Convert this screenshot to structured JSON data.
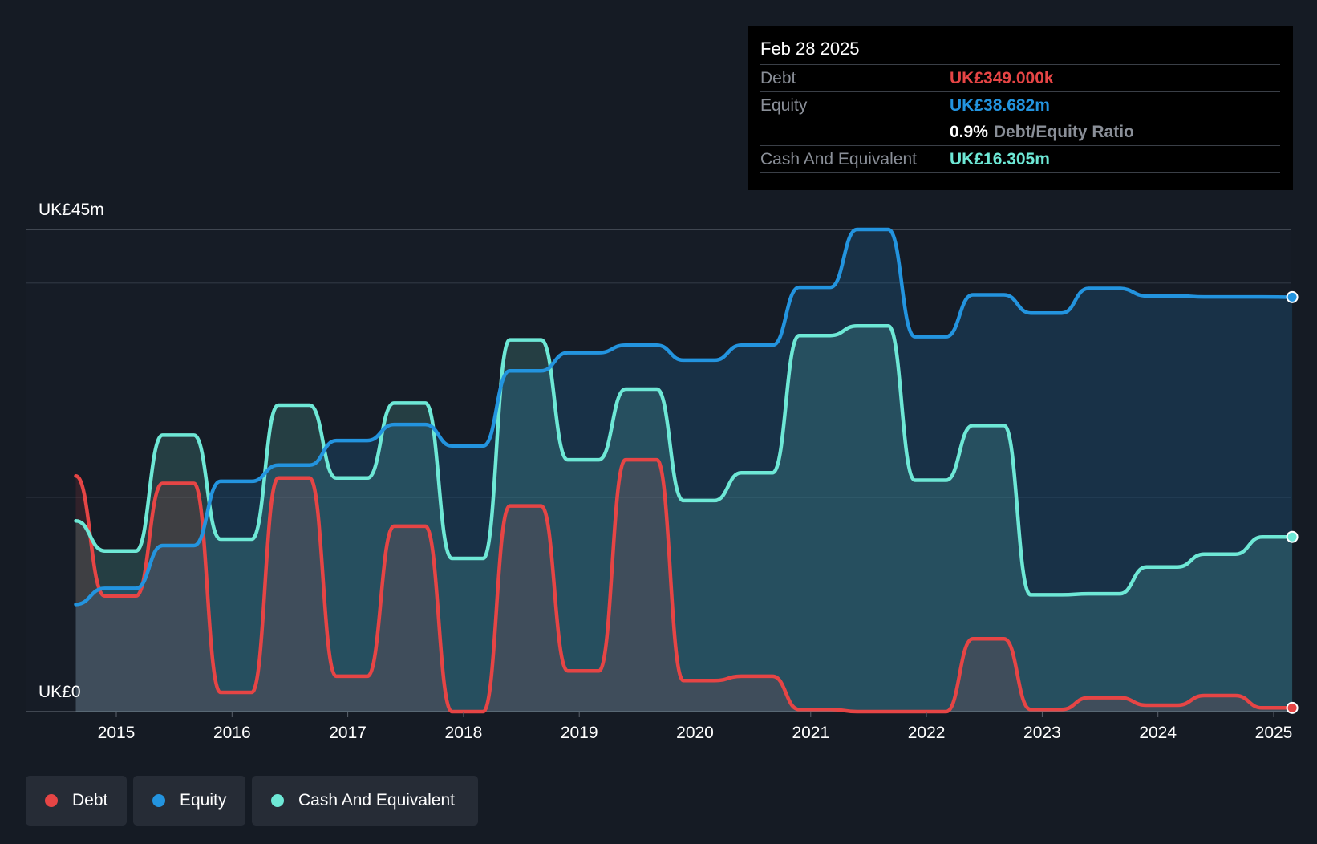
{
  "tooltip": {
    "date": "Feb 28 2025",
    "debt_label": "Debt",
    "debt_value": "UK£349.000k",
    "equity_label": "Equity",
    "equity_value": "UK£38.682m",
    "ratio_value": "0.9%",
    "ratio_label": "Debt/Equity Ratio",
    "cash_label": "Cash And Equivalent",
    "cash_value": "UK£16.305m"
  },
  "legend": {
    "debt": "Debt",
    "equity": "Equity",
    "cash": "Cash And Equivalent"
  },
  "colors": {
    "debt": "#e64545",
    "equity": "#2394df",
    "cash": "#6ee8d6",
    "background": "#151b24"
  },
  "chart_data": {
    "type": "area",
    "y_top_label": "UK£45m",
    "y_bottom_label": "UK£0",
    "ylim": [
      0,
      45
    ],
    "xlim": [
      2014.65,
      2025.17
    ],
    "x_ticks": [
      "2015",
      "2016",
      "2017",
      "2018",
      "2019",
      "2020",
      "2021",
      "2022",
      "2023",
      "2024",
      "2025"
    ],
    "series": [
      {
        "name": "Debt",
        "points": [
          [
            2014.65,
            22.0
          ],
          [
            2014.9,
            10.8
          ],
          [
            2015.17,
            10.8
          ],
          [
            2015.4,
            21.3
          ],
          [
            2015.67,
            21.3
          ],
          [
            2015.9,
            1.8
          ],
          [
            2016.17,
            1.8
          ],
          [
            2016.4,
            21.8
          ],
          [
            2016.67,
            21.8
          ],
          [
            2016.9,
            3.3
          ],
          [
            2017.17,
            3.3
          ],
          [
            2017.4,
            17.3
          ],
          [
            2017.67,
            17.3
          ],
          [
            2017.9,
            0.0
          ],
          [
            2018.17,
            0.0
          ],
          [
            2018.4,
            19.2
          ],
          [
            2018.67,
            19.2
          ],
          [
            2018.9,
            3.8
          ],
          [
            2019.17,
            3.8
          ],
          [
            2019.4,
            23.5
          ],
          [
            2019.67,
            23.5
          ],
          [
            2019.9,
            2.9
          ],
          [
            2020.17,
            2.9
          ],
          [
            2020.4,
            3.3
          ],
          [
            2020.67,
            3.3
          ],
          [
            2020.9,
            0.2
          ],
          [
            2021.17,
            0.2
          ],
          [
            2021.4,
            0.0
          ],
          [
            2021.67,
            0.0
          ],
          [
            2021.9,
            0.0
          ],
          [
            2022.17,
            0.0
          ],
          [
            2022.4,
            6.8
          ],
          [
            2022.67,
            6.8
          ],
          [
            2022.9,
            0.2
          ],
          [
            2023.17,
            0.2
          ],
          [
            2023.4,
            1.3
          ],
          [
            2023.67,
            1.3
          ],
          [
            2023.9,
            0.6
          ],
          [
            2024.17,
            0.6
          ],
          [
            2024.4,
            1.5
          ],
          [
            2024.67,
            1.5
          ],
          [
            2024.9,
            0.35
          ],
          [
            2025.16,
            0.349
          ]
        ]
      },
      {
        "name": "Equity",
        "points": [
          [
            2014.65,
            10.0
          ],
          [
            2014.9,
            11.5
          ],
          [
            2015.17,
            11.5
          ],
          [
            2015.4,
            15.5
          ],
          [
            2015.67,
            15.5
          ],
          [
            2015.9,
            21.5
          ],
          [
            2016.17,
            21.5
          ],
          [
            2016.4,
            23.0
          ],
          [
            2016.67,
            23.0
          ],
          [
            2016.9,
            25.3
          ],
          [
            2017.17,
            25.3
          ],
          [
            2017.4,
            26.8
          ],
          [
            2017.67,
            26.8
          ],
          [
            2017.9,
            24.8
          ],
          [
            2018.17,
            24.8
          ],
          [
            2018.4,
            31.8
          ],
          [
            2018.67,
            31.8
          ],
          [
            2018.9,
            33.5
          ],
          [
            2019.17,
            33.5
          ],
          [
            2019.4,
            34.2
          ],
          [
            2019.67,
            34.2
          ],
          [
            2019.9,
            32.8
          ],
          [
            2020.17,
            32.8
          ],
          [
            2020.4,
            34.2
          ],
          [
            2020.67,
            34.2
          ],
          [
            2020.9,
            39.6
          ],
          [
            2021.17,
            39.6
          ],
          [
            2021.4,
            45.0
          ],
          [
            2021.67,
            45.0
          ],
          [
            2021.9,
            35.0
          ],
          [
            2022.17,
            35.0
          ],
          [
            2022.4,
            38.9
          ],
          [
            2022.67,
            38.9
          ],
          [
            2022.9,
            37.2
          ],
          [
            2023.17,
            37.2
          ],
          [
            2023.4,
            39.5
          ],
          [
            2023.67,
            39.5
          ],
          [
            2023.9,
            38.8
          ],
          [
            2024.17,
            38.8
          ],
          [
            2024.4,
            38.7
          ],
          [
            2024.67,
            38.7
          ],
          [
            2024.9,
            38.7
          ],
          [
            2025.16,
            38.682
          ]
        ]
      },
      {
        "name": "Cash And Equivalent",
        "points": [
          [
            2014.65,
            17.8
          ],
          [
            2014.9,
            15.0
          ],
          [
            2015.17,
            15.0
          ],
          [
            2015.4,
            25.8
          ],
          [
            2015.67,
            25.8
          ],
          [
            2015.9,
            16.1
          ],
          [
            2016.17,
            16.1
          ],
          [
            2016.4,
            28.6
          ],
          [
            2016.67,
            28.6
          ],
          [
            2016.9,
            21.8
          ],
          [
            2017.17,
            21.8
          ],
          [
            2017.4,
            28.8
          ],
          [
            2017.67,
            28.8
          ],
          [
            2017.9,
            14.3
          ],
          [
            2018.17,
            14.3
          ],
          [
            2018.4,
            34.7
          ],
          [
            2018.67,
            34.7
          ],
          [
            2018.9,
            23.5
          ],
          [
            2019.17,
            23.5
          ],
          [
            2019.4,
            30.1
          ],
          [
            2019.67,
            30.1
          ],
          [
            2019.9,
            19.7
          ],
          [
            2020.17,
            19.7
          ],
          [
            2020.4,
            22.3
          ],
          [
            2020.67,
            22.3
          ],
          [
            2020.9,
            35.1
          ],
          [
            2021.17,
            35.1
          ],
          [
            2021.4,
            36.0
          ],
          [
            2021.67,
            36.0
          ],
          [
            2021.9,
            21.6
          ],
          [
            2022.17,
            21.6
          ],
          [
            2022.4,
            26.7
          ],
          [
            2022.67,
            26.7
          ],
          [
            2022.9,
            10.9
          ],
          [
            2023.17,
            10.9
          ],
          [
            2023.4,
            11.0
          ],
          [
            2023.67,
            11.0
          ],
          [
            2023.9,
            13.5
          ],
          [
            2024.17,
            13.5
          ],
          [
            2024.4,
            14.7
          ],
          [
            2024.67,
            14.7
          ],
          [
            2024.9,
            16.3
          ],
          [
            2025.16,
            16.305
          ]
        ]
      }
    ],
    "legend_position": "bottom-left",
    "grid": true
  }
}
